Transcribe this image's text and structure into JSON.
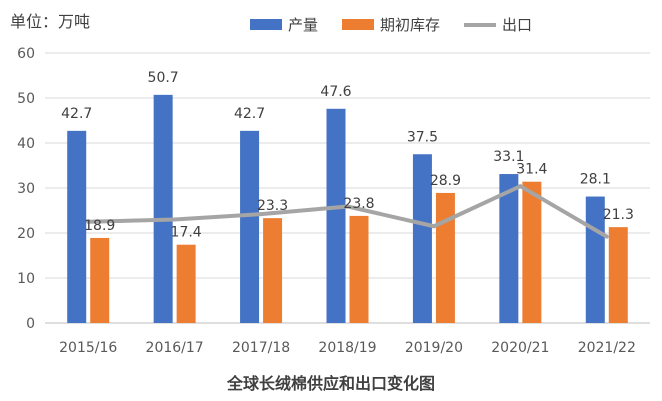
{
  "unit_label": "单位：万吨",
  "title": "全球长绒棉供应和出口变化图",
  "colors": {
    "production": "#4472C4",
    "stock": "#ED7D31",
    "export": "#A5A5A5",
    "axis_text": "#595959",
    "grid": "#D9D9D9"
  },
  "chart_data": {
    "type": "bar",
    "title": "全球长绒棉供应和出口变化图",
    "xlabel": "",
    "ylabel": "单位：万吨",
    "ylim": [
      0,
      60
    ],
    "yticks": [
      0,
      10,
      20,
      30,
      40,
      50,
      60
    ],
    "grid": true,
    "legend_position": "top",
    "categories": [
      "2015/16",
      "2016/17",
      "2017/18",
      "2018/19",
      "2019/20",
      "2020/21",
      "2021/22"
    ],
    "series": [
      {
        "name": "产量",
        "type": "bar",
        "values": [
          42.7,
          50.7,
          42.7,
          47.6,
          37.5,
          33.1,
          28.1
        ],
        "labels": [
          "42.7",
          "50.7",
          "42.7",
          "47.6",
          "37.5",
          "33.1",
          "28.1"
        ]
      },
      {
        "name": "期初库存",
        "type": "bar",
        "values": [
          18.9,
          17.4,
          23.3,
          23.8,
          28.9,
          31.4,
          21.3
        ],
        "labels": [
          "18.9",
          "17.4",
          "23.3",
          "23.8",
          "28.9",
          "31.4",
          "21.3"
        ]
      },
      {
        "name": "出口",
        "type": "line",
        "values": [
          22.5,
          23.0,
          24.2,
          25.9,
          21.5,
          30.4,
          19.2
        ]
      }
    ]
  }
}
